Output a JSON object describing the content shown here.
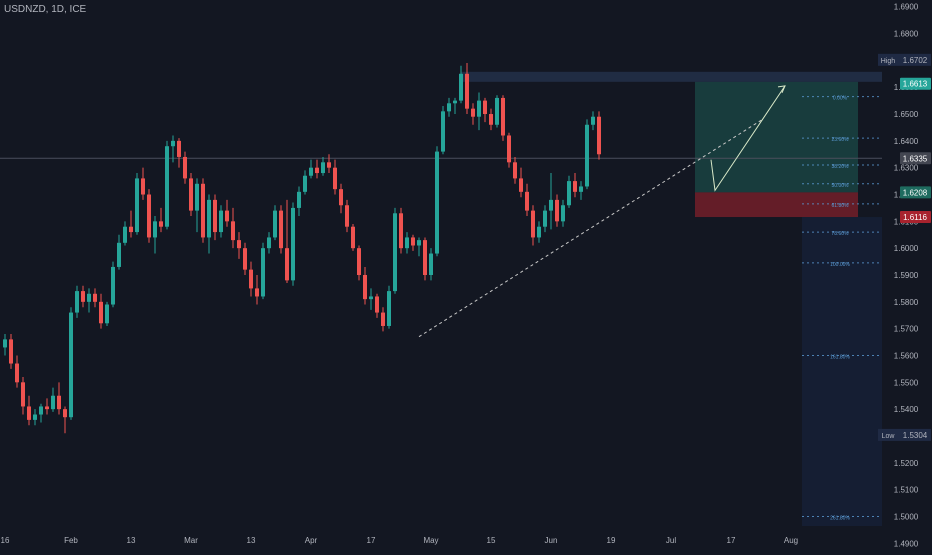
{
  "header": {
    "symbol_label": "USDNZD, 1D, ICE"
  },
  "colors": {
    "background": "#131722",
    "up": "#26a69a",
    "down": "#ef5350",
    "axis_text": "#b2b5be",
    "fib_line": "#5b9bd5",
    "target_zone": "#1e6b5f",
    "stop_zone": "#a8232e",
    "trendline": "#c8c8c8"
  },
  "chart_data": {
    "type": "candlestick",
    "y_axis": {
      "range": [
        1.4875,
        1.6925
      ],
      "tick_labels": [
        "1.6900",
        "1.6800",
        "1.6700",
        "1.6600",
        "1.6500",
        "1.6400",
        "1.6300",
        "1.6200",
        "1.6100",
        "1.6000",
        "1.5900",
        "1.5800",
        "1.5700",
        "1.5600",
        "1.5500",
        "1.5400",
        "1.5300",
        "1.5200",
        "1.5100",
        "1.5000",
        "1.4900"
      ],
      "ticks": [
        1.69,
        1.68,
        1.67,
        1.66,
        1.65,
        1.64,
        1.63,
        1.62,
        1.61,
        1.6,
        1.59,
        1.58,
        1.57,
        1.56,
        1.55,
        1.54,
        1.53,
        1.52,
        1.51,
        1.5,
        1.49
      ]
    },
    "x_axis": {
      "tick_labels": [
        {
          "text": "16",
          "bar": 0
        },
        {
          "text": "Feb",
          "bar": 11
        },
        {
          "text": "13",
          "bar": 21
        },
        {
          "text": "Mar",
          "bar": 31
        },
        {
          "text": "13",
          "bar": 41
        },
        {
          "text": "Apr",
          "bar": 51
        },
        {
          "text": "17",
          "bar": 61
        },
        {
          "text": "May",
          "bar": 71
        },
        {
          "text": "15",
          "bar": 81
        },
        {
          "text": "Jun",
          "bar": 91
        },
        {
          "text": "19",
          "bar": 101
        },
        {
          "text": "Jul",
          "bar": 111
        },
        {
          "text": "17",
          "bar": 121
        },
        {
          "text": "Aug",
          "bar": 131
        }
      ]
    },
    "candles": [
      [
        1.563,
        1.568,
        1.56,
        1.566
      ],
      [
        1.566,
        1.568,
        1.555,
        1.557
      ],
      [
        1.557,
        1.56,
        1.548,
        1.55
      ],
      [
        1.55,
        1.552,
        1.538,
        1.541
      ],
      [
        1.541,
        1.545,
        1.534,
        1.536
      ],
      [
        1.536,
        1.54,
        1.534,
        1.538
      ],
      [
        1.538,
        1.542,
        1.535,
        1.541
      ],
      [
        1.541,
        1.544,
        1.538,
        1.54
      ],
      [
        1.54,
        1.548,
        1.539,
        1.545
      ],
      [
        1.545,
        1.55,
        1.538,
        1.54
      ],
      [
        1.54,
        1.541,
        1.531,
        1.537
      ],
      [
        1.537,
        1.578,
        1.536,
        1.576
      ],
      [
        1.576,
        1.586,
        1.574,
        1.584
      ],
      [
        1.584,
        1.586,
        1.578,
        1.58
      ],
      [
        1.58,
        1.585,
        1.576,
        1.583
      ],
      [
        1.583,
        1.585,
        1.578,
        1.58
      ],
      [
        1.58,
        1.583,
        1.57,
        1.572
      ],
      [
        1.572,
        1.58,
        1.571,
        1.579
      ],
      [
        1.579,
        1.595,
        1.578,
        1.593
      ],
      [
        1.593,
        1.605,
        1.592,
        1.602
      ],
      [
        1.602,
        1.61,
        1.601,
        1.608
      ],
      [
        1.608,
        1.614,
        1.604,
        1.606
      ],
      [
        1.606,
        1.628,
        1.605,
        1.626
      ],
      [
        1.626,
        1.63,
        1.618,
        1.62
      ],
      [
        1.62,
        1.622,
        1.602,
        1.604
      ],
      [
        1.604,
        1.612,
        1.598,
        1.61
      ],
      [
        1.61,
        1.615,
        1.606,
        1.608
      ],
      [
        1.608,
        1.64,
        1.607,
        1.638
      ],
      [
        1.638,
        1.642,
        1.632,
        1.64
      ],
      [
        1.64,
        1.641,
        1.63,
        1.634
      ],
      [
        1.634,
        1.636,
        1.624,
        1.626
      ],
      [
        1.626,
        1.628,
        1.612,
        1.614
      ],
      [
        1.614,
        1.626,
        1.606,
        1.624
      ],
      [
        1.624,
        1.626,
        1.602,
        1.604
      ],
      [
        1.604,
        1.62,
        1.598,
        1.618
      ],
      [
        1.618,
        1.62,
        1.603,
        1.606
      ],
      [
        1.606,
        1.616,
        1.604,
        1.614
      ],
      [
        1.614,
        1.618,
        1.608,
        1.61
      ],
      [
        1.61,
        1.615,
        1.6,
        1.603
      ],
      [
        1.603,
        1.606,
        1.596,
        1.6
      ],
      [
        1.6,
        1.602,
        1.59,
        1.592
      ],
      [
        1.592,
        1.595,
        1.582,
        1.585
      ],
      [
        1.585,
        1.59,
        1.579,
        1.582
      ],
      [
        1.582,
        1.602,
        1.581,
        1.6
      ],
      [
        1.6,
        1.606,
        1.598,
        1.604
      ],
      [
        1.604,
        1.616,
        1.603,
        1.614
      ],
      [
        1.614,
        1.616,
        1.598,
        1.6
      ],
      [
        1.6,
        1.618,
        1.587,
        1.588
      ],
      [
        1.588,
        1.617,
        1.586,
        1.615
      ],
      [
        1.615,
        1.623,
        1.612,
        1.621
      ],
      [
        1.621,
        1.629,
        1.62,
        1.627
      ],
      [
        1.627,
        1.633,
        1.626,
        1.63
      ],
      [
        1.63,
        1.633,
        1.626,
        1.628
      ],
      [
        1.628,
        1.634,
        1.627,
        1.632
      ],
      [
        1.632,
        1.635,
        1.628,
        1.63
      ],
      [
        1.63,
        1.633,
        1.62,
        1.622
      ],
      [
        1.622,
        1.624,
        1.613,
        1.616
      ],
      [
        1.616,
        1.618,
        1.606,
        1.608
      ],
      [
        1.608,
        1.609,
        1.599,
        1.6
      ],
      [
        1.6,
        1.601,
        1.588,
        1.59
      ],
      [
        1.59,
        1.593,
        1.579,
        1.581
      ],
      [
        1.581,
        1.585,
        1.577,
        1.582
      ],
      [
        1.582,
        1.583,
        1.574,
        1.576
      ],
      [
        1.576,
        1.578,
        1.569,
        1.571
      ],
      [
        1.571,
        1.586,
        1.57,
        1.584
      ],
      [
        1.584,
        1.615,
        1.583,
        1.613
      ],
      [
        1.613,
        1.615,
        1.598,
        1.6
      ],
      [
        1.6,
        1.606,
        1.598,
        1.604
      ],
      [
        1.604,
        1.605,
        1.599,
        1.601
      ],
      [
        1.601,
        1.604,
        1.597,
        1.603
      ],
      [
        1.603,
        1.604,
        1.588,
        1.59
      ],
      [
        1.59,
        1.6,
        1.588,
        1.598
      ],
      [
        1.598,
        1.638,
        1.597,
        1.636
      ],
      [
        1.636,
        1.653,
        1.635,
        1.651
      ],
      [
        1.651,
        1.656,
        1.649,
        1.654
      ],
      [
        1.654,
        1.656,
        1.65,
        1.655
      ],
      [
        1.655,
        1.668,
        1.654,
        1.665
      ],
      [
        1.665,
        1.669,
        1.65,
        1.652
      ],
      [
        1.652,
        1.654,
        1.646,
        1.649
      ],
      [
        1.649,
        1.658,
        1.644,
        1.655
      ],
      [
        1.655,
        1.656,
        1.647,
        1.65
      ],
      [
        1.65,
        1.652,
        1.644,
        1.646
      ],
      [
        1.646,
        1.657,
        1.645,
        1.656
      ],
      [
        1.656,
        1.657,
        1.64,
        1.642
      ],
      [
        1.642,
        1.643,
        1.63,
        1.632
      ],
      [
        1.632,
        1.634,
        1.624,
        1.626
      ],
      [
        1.626,
        1.63,
        1.619,
        1.621
      ],
      [
        1.621,
        1.624,
        1.612,
        1.614
      ],
      [
        1.614,
        1.616,
        1.601,
        1.604
      ],
      [
        1.604,
        1.61,
        1.602,
        1.608
      ],
      [
        1.608,
        1.616,
        1.606,
        1.614
      ],
      [
        1.614,
        1.628,
        1.607,
        1.618
      ],
      [
        1.618,
        1.62,
        1.608,
        1.61
      ],
      [
        1.61,
        1.618,
        1.608,
        1.616
      ],
      [
        1.616,
        1.627,
        1.615,
        1.625
      ],
      [
        1.625,
        1.628,
        1.619,
        1.621
      ],
      [
        1.621,
        1.625,
        1.618,
        1.623
      ],
      [
        1.623,
        1.648,
        1.622,
        1.646
      ],
      [
        1.646,
        1.651,
        1.644,
        1.649
      ],
      [
        1.649,
        1.651,
        1.633,
        1.635
      ]
    ],
    "annotations": {
      "high_label": "High",
      "high_value": "1.6702",
      "low_label": "Low",
      "low_value": "1.5304",
      "price_tags": [
        {
          "value": 1.6613,
          "label": "1.6613",
          "color": "#26a69a"
        },
        {
          "value": 1.6335,
          "label": "1.6335",
          "color": "#434651"
        },
        {
          "value": 1.6208,
          "label": "1.6208",
          "color": "#1e6b5f"
        },
        {
          "value": 1.6116,
          "label": "1.6116",
          "color": "#a8232e"
        }
      ],
      "fib_levels": [
        {
          "label": "0.00%",
          "value": 1.6565
        },
        {
          "label": "23.60%",
          "value": 1.641
        },
        {
          "label": "38.20%",
          "value": 1.631
        },
        {
          "label": "50.00%",
          "value": 1.624
        },
        {
          "label": "61.80%",
          "value": 1.6165
        },
        {
          "label": "78.60%",
          "value": 1.606
        },
        {
          "label": "100.00%",
          "value": 1.5945
        },
        {
          "label": "161.80%",
          "value": 1.56
        },
        {
          "label": "261.80%",
          "value": 1.5
        }
      ],
      "current_price": 1.6335,
      "trend_start": {
        "bar": 69,
        "value": 1.567
      },
      "trend_end": {
        "bar": 118,
        "value": 1.625
      },
      "zone_top": 1.662,
      "zone_mid": 1.6208,
      "zone_bottom": 1.6116
    }
  }
}
